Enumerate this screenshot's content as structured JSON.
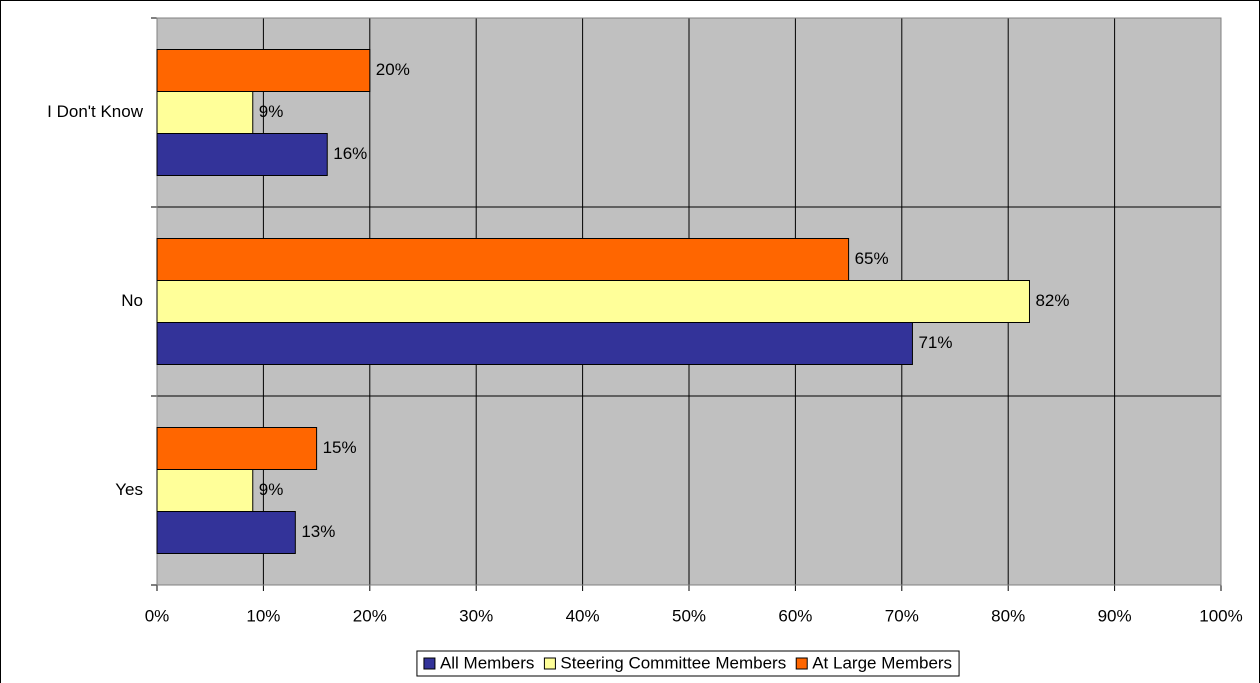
{
  "chart_data": {
    "type": "hbar",
    "categories": [
      "Yes",
      "No",
      "I Don't Know"
    ],
    "series": [
      {
        "name": "All Members",
        "color": "#333399",
        "values": [
          13,
          71,
          16
        ],
        "value_labels": [
          "13%",
          "71%",
          "16%"
        ]
      },
      {
        "name": "Steering Committee Members",
        "color": "#FFFF99",
        "values": [
          9,
          82,
          9
        ],
        "value_labels": [
          "9%",
          "82%",
          "9%"
        ]
      },
      {
        "name": "At Large Members",
        "color": "#FF6600",
        "values": [
          15,
          65,
          20
        ],
        "value_labels": [
          "15%",
          "65%",
          "20%"
        ]
      }
    ],
    "xlim": [
      0,
      100
    ],
    "xticks": [
      {
        "value": 0,
        "label": "0%"
      },
      {
        "value": 10,
        "label": "10%"
      },
      {
        "value": 20,
        "label": "20%"
      },
      {
        "value": 30,
        "label": "30%"
      },
      {
        "value": 40,
        "label": "40%"
      },
      {
        "value": 50,
        "label": "50%"
      },
      {
        "value": 60,
        "label": "60%"
      },
      {
        "value": 70,
        "label": "70%"
      },
      {
        "value": 80,
        "label": "80%"
      },
      {
        "value": 90,
        "label": "90%"
      },
      {
        "value": 100,
        "label": "100%"
      }
    ],
    "grid": true,
    "plot_background": "#C0C0C0",
    "legend": "bottom"
  }
}
